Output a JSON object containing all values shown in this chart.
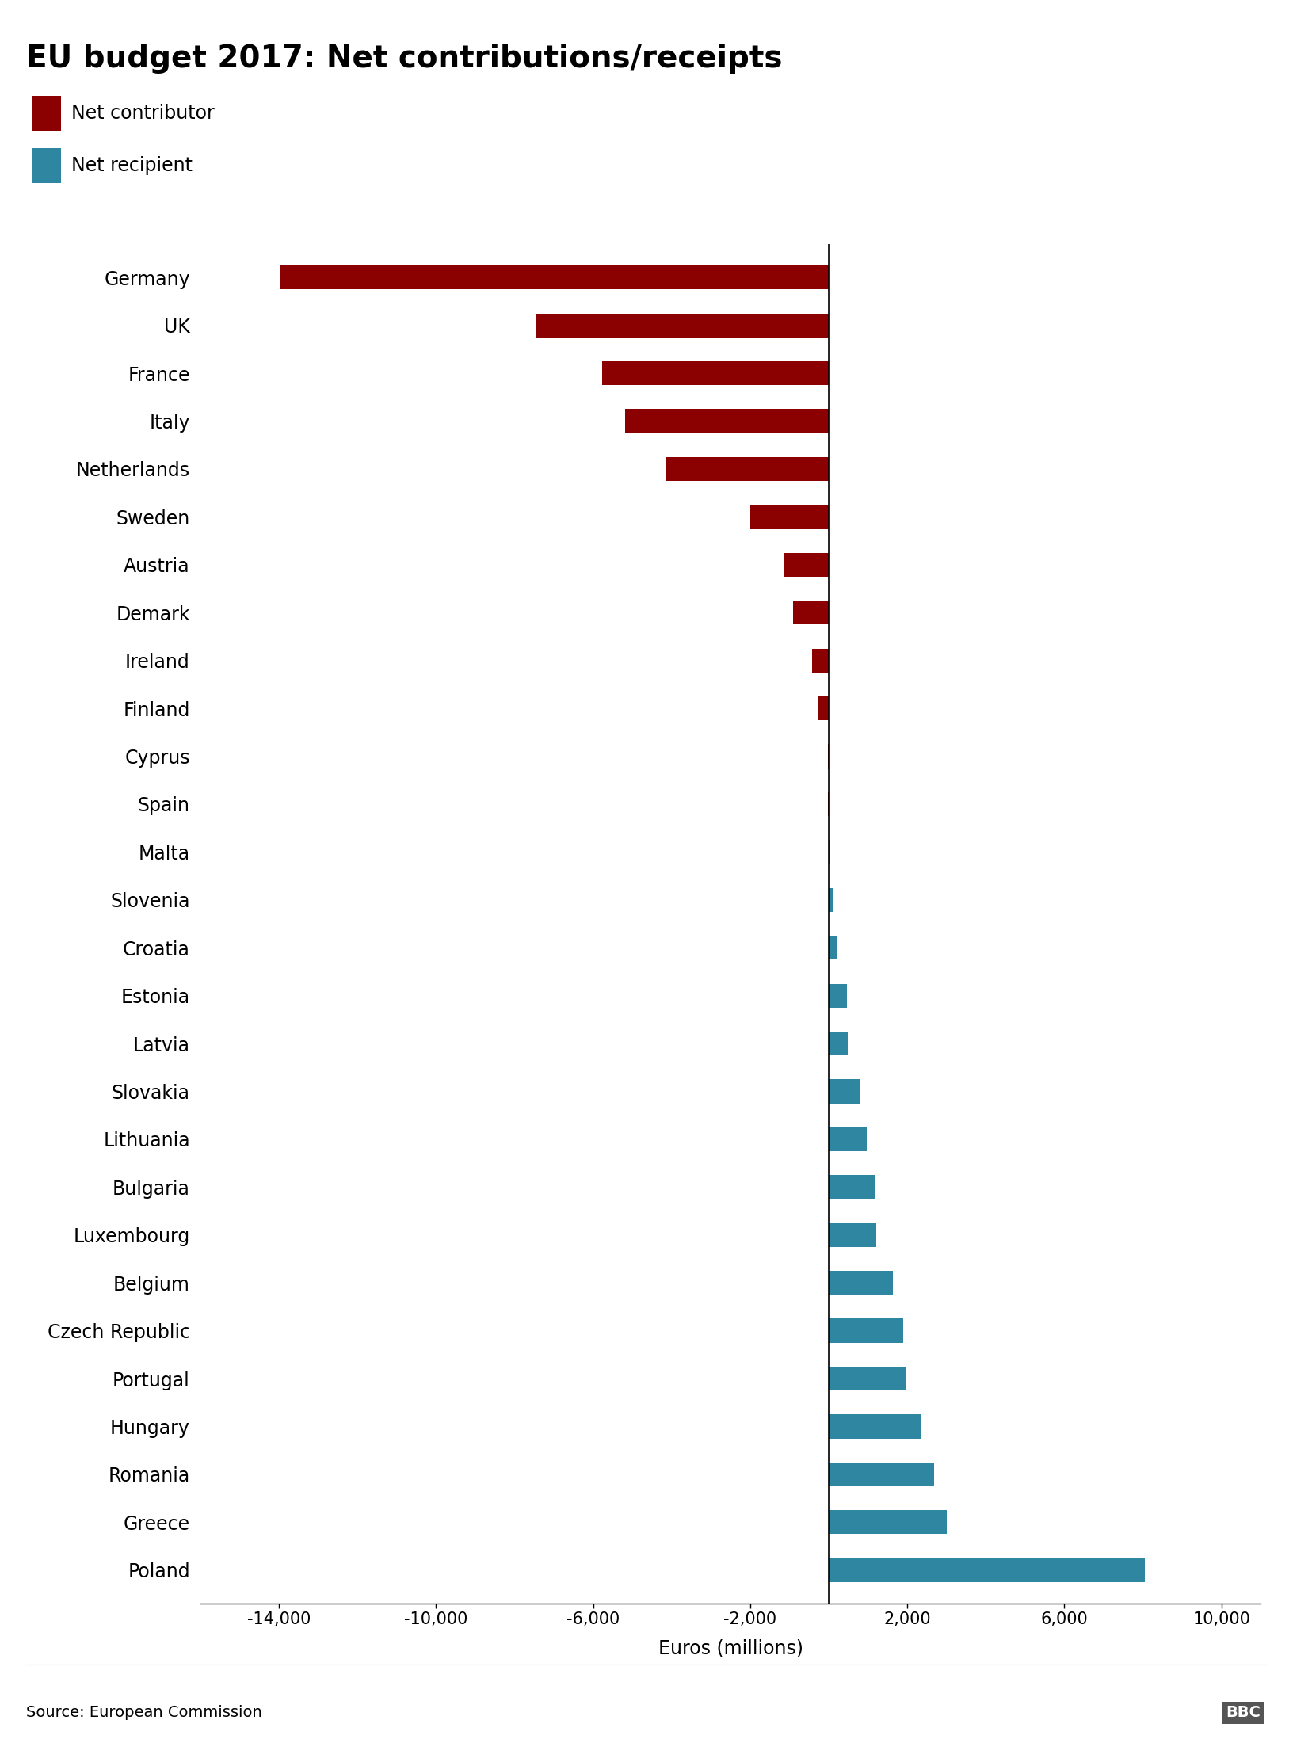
{
  "title": "EU budget 2017: Net contributions/receipts",
  "xlabel": "Euros (millions)",
  "source": "Source: European Commission",
  "legend": [
    {
      "label": "Net contributor",
      "color": "#8B0000"
    },
    {
      "label": "Net recipient",
      "color": "#2E86A0"
    }
  ],
  "countries": [
    "Germany",
    "UK",
    "France",
    "Italy",
    "Netherlands",
    "Sweden",
    "Austria",
    "Demark",
    "Ireland",
    "Finland",
    "Cyprus",
    "Spain",
    "Malta",
    "Slovenia",
    "Croatia",
    "Estonia",
    "Latvia",
    "Slovakia",
    "Lithuania",
    "Bulgaria",
    "Luxembourg",
    "Belgium",
    "Czech Republic",
    "Portugal",
    "Hungary",
    "Romania",
    "Greece",
    "Poland"
  ],
  "values": [
    -13969,
    -7436,
    -5765,
    -5194,
    -4147,
    -1988,
    -1131,
    -904,
    -418,
    -270,
    -20,
    -15,
    37,
    97,
    217,
    461,
    486,
    786,
    959,
    1166,
    1208,
    1638,
    1896,
    1967,
    2360,
    2682,
    3011,
    8043
  ],
  "contributor_color": "#8B0000",
  "recipient_color": "#2E86A0",
  "xlim": [
    -16000,
    11000
  ],
  "xticks": [
    -14000,
    -10000,
    -6000,
    -2000,
    2000,
    6000,
    10000
  ],
  "xticklabels": [
    "-14,000",
    "-10,000",
    "-6,000",
    "-2,000",
    "2,000",
    "6,000",
    "10,000"
  ],
  "background_color": "#FFFFFF",
  "title_fontsize": 28,
  "label_fontsize": 17,
  "tick_fontsize": 15,
  "source_fontsize": 14,
  "bar_height": 0.5
}
